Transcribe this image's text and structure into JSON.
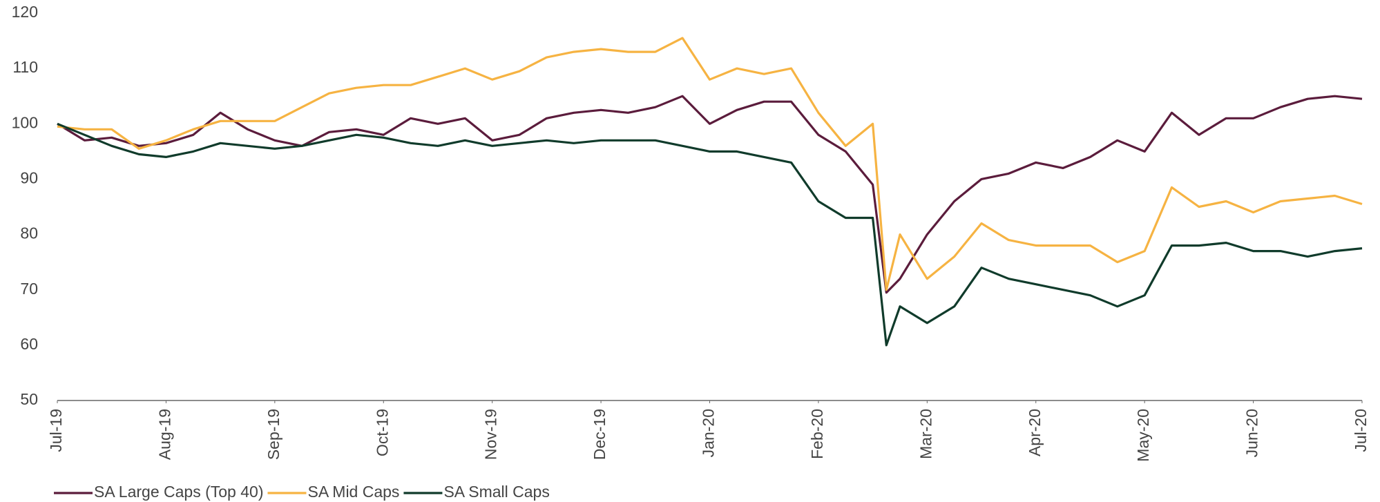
{
  "chart_data": {
    "type": "line",
    "x": [
      0,
      0.25,
      0.5,
      0.75,
      1,
      1.25,
      1.5,
      1.75,
      2,
      2.25,
      2.5,
      2.75,
      3,
      3.25,
      3.5,
      3.75,
      4,
      4.25,
      4.5,
      4.75,
      5,
      5.25,
      5.5,
      5.75,
      6,
      6.25,
      6.5,
      6.75,
      7,
      7.25,
      7.5,
      7.625,
      7.75,
      8,
      8.25,
      8.5,
      8.75,
      9,
      9.25,
      9.5,
      9.75,
      10,
      10.25,
      10.5,
      10.75,
      11,
      11.25,
      11.5,
      11.75,
      12
    ],
    "series": [
      {
        "name": "SA Large Caps (Top 40)",
        "color": "#5b1c3c",
        "values": [
          100,
          97,
          97.5,
          96,
          96.5,
          98,
          102,
          99,
          97,
          96,
          98.5,
          99,
          98,
          101,
          100,
          101,
          97,
          98,
          101,
          102,
          102.5,
          102,
          103,
          105,
          100,
          102.5,
          104,
          104,
          98,
          95,
          89,
          69.5,
          72,
          80,
          86,
          90,
          91,
          93,
          92,
          94,
          97,
          95,
          102,
          98,
          101,
          101,
          103,
          104.5,
          105,
          104.5
        ]
      },
      {
        "name": "SA Mid Caps",
        "color": "#f6b342",
        "values": [
          99.5,
          99,
          99,
          95.5,
          97,
          99,
          100.5,
          100.5,
          100.5,
          103,
          105.5,
          106.5,
          107,
          107,
          108.5,
          110,
          108,
          109.5,
          112,
          113,
          113.5,
          113,
          113,
          115.5,
          108,
          110,
          109,
          110,
          102,
          96,
          100,
          70,
          80,
          72,
          76,
          82,
          79,
          78,
          78,
          78,
          75,
          77,
          88.5,
          85,
          86,
          84,
          86,
          86.5,
          87,
          85.5
        ]
      },
      {
        "name": "SA Small Caps",
        "color": "#103b2b",
        "values": [
          100,
          98,
          96,
          94.5,
          94,
          95,
          96.5,
          96,
          95.5,
          96,
          97,
          98,
          97.5,
          96.5,
          96,
          97,
          96,
          96.5,
          97,
          96.5,
          97,
          97,
          97,
          96,
          95,
          95,
          94,
          93,
          86,
          83,
          83,
          60,
          67,
          64,
          67,
          74,
          72,
          71,
          70,
          69,
          67,
          69,
          78,
          78,
          78.5,
          77,
          77,
          76,
          77,
          77.5
        ]
      }
    ],
    "xlim": [
      0,
      12
    ],
    "xticks": [
      {
        "value": 0,
        "label": "Jul-19"
      },
      {
        "value": 1,
        "label": "Aug-19"
      },
      {
        "value": 2,
        "label": "Sep-19"
      },
      {
        "value": 3,
        "label": "Oct-19"
      },
      {
        "value": 4,
        "label": "Nov-19"
      },
      {
        "value": 5,
        "label": "Dec-19"
      },
      {
        "value": 6,
        "label": "Jan-20"
      },
      {
        "value": 7,
        "label": "Feb-20"
      },
      {
        "value": 8,
        "label": "Mar-20"
      },
      {
        "value": 9,
        "label": "Apr-20"
      },
      {
        "value": 10,
        "label": "May-20"
      },
      {
        "value": 11,
        "label": "Jun-20"
      },
      {
        "value": 12,
        "label": "Jul-20"
      }
    ],
    "ylim": [
      50,
      120
    ],
    "yticks": [
      50,
      60,
      70,
      80,
      90,
      100,
      110,
      120
    ],
    "grid": false,
    "legend": "bottom"
  }
}
